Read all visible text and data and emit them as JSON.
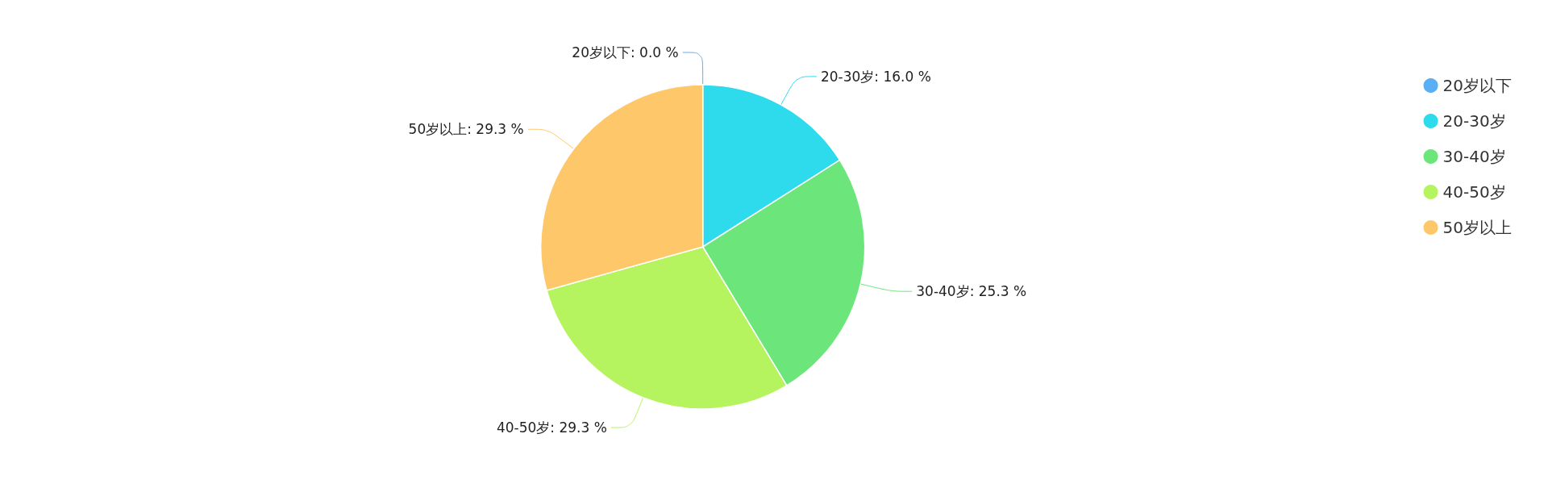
{
  "chart_data": {
    "type": "pie",
    "categories": [
      "20岁以下",
      "20-30岁",
      "30-40岁",
      "40-50岁",
      "50岁以上"
    ],
    "values": [
      0.0,
      16.0,
      25.3,
      29.3,
      29.3
    ],
    "value_labels": [
      "20岁以下: 0.0 %",
      "20-30岁: 16.0 %",
      "30-40岁: 25.3 %",
      "40-50岁: 29.3 %",
      "50岁以上: 29.3 %"
    ],
    "colors": [
      "#5aaef3",
      "#2ddbec",
      "#6ce67a",
      "#b6f45f",
      "#fec86a"
    ],
    "legend": "top right"
  }
}
